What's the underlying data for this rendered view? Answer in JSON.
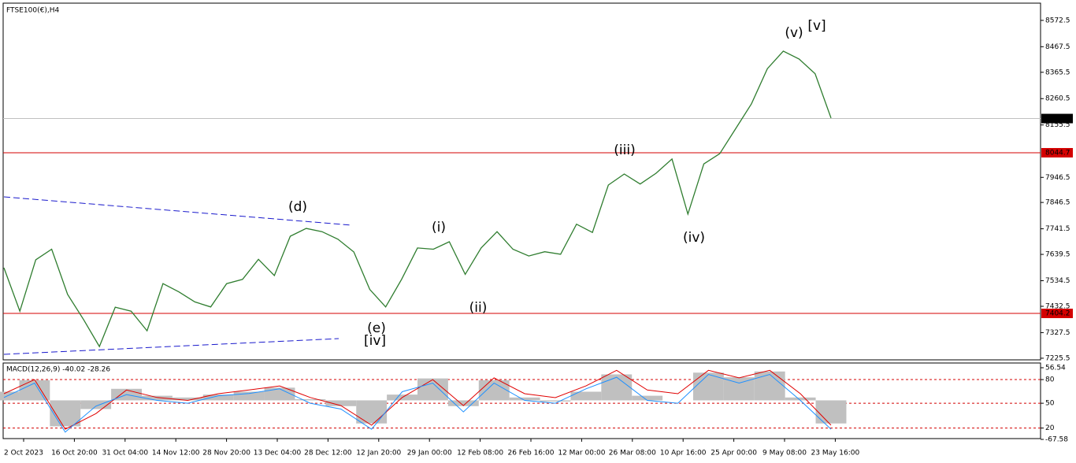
{
  "chart_data": [
    {
      "type": "line",
      "title": "FTSE100(€),H4",
      "color": "#2f7d2f",
      "values": [
        7586,
        7413,
        7618,
        7660,
        7480,
        7380,
        7272,
        7429,
        7413,
        7335,
        7523,
        7490,
        7450,
        7430,
        7523,
        7540,
        7620,
        7555,
        7712,
        7743,
        7730,
        7700,
        7649,
        7500,
        7430,
        7540,
        7665,
        7660,
        7690,
        7560,
        7665,
        7730,
        7660,
        7633,
        7650,
        7640,
        7760,
        7727,
        7916,
        7960,
        7920,
        7963,
        8020,
        7800,
        8000,
        8041,
        8140,
        8240,
        8380,
        8450,
        8418,
        8360,
        8183
      ],
      "ylim": [
        7219,
        8638
      ],
      "yticks": [
        8572.5,
        8467.5,
        8365.5,
        8260.5,
        8155.5,
        7946.5,
        7846.5,
        7741.5,
        7639.5,
        7534.5,
        7432.5,
        7327.5,
        7225.5
      ],
      "levels": [
        8044.7,
        7404.2
      ],
      "levels_color": "#d40000",
      "last_price": 8181.1,
      "x_labels": [
        "2 Oct 2023",
        "16 Oct 20:00",
        "31 Oct 04:00",
        "14 Nov 12:00",
        "28 Nov 20:00",
        "13 Dec 04:00",
        "28 Dec 12:00",
        "12 Jan 20:00",
        "29 Jan 00:00",
        "12 Feb 08:00",
        "26 Feb 16:00",
        "12 Mar 00:00",
        "26 Mar 08:00",
        "10 Apr 16:00",
        "25 Apr 00:00",
        "9 May 08:00",
        "23 May 16:00"
      ],
      "annotations": [
        "(d)",
        "(i)",
        "(ii)",
        "(iii)",
        "(iv)",
        "(v)",
        "[v]",
        "(e)",
        "[iv]"
      ]
    },
    {
      "type": "macd",
      "title": "MACD(12,26,9) -40.02 -28.26",
      "ylim": [
        -67.58,
        56.54
      ],
      "yticks": [
        56.54,
        {
          "value": 36,
          "label": "80"
        },
        {
          "value": -5,
          "label": "50"
        },
        {
          "value": -48,
          "label": "20"
        },
        -67.58
      ],
      "series": [
        {
          "color": "#c0c0c0",
          "values": [
            15,
            35,
            -45,
            -15,
            20,
            8,
            5,
            10,
            15,
            22,
            2,
            -10,
            -40,
            10,
            38,
            -10,
            35,
            5,
            -2,
            15,
            45,
            8,
            0,
            48,
            40,
            50,
            5,
            -40
          ]
        },
        {
          "color": "#e00000",
          "values": [
            11.5,
            36,
            -50,
            -23,
            18,
            5,
            0,
            11.5,
            18,
            25,
            5,
            -9,
            -43,
            5,
            36,
            -9,
            39,
            11.5,
            4.7,
            25,
            52,
            18,
            11.5,
            52,
            39,
            52,
            11.5,
            -43
          ]
        },
        {
          "color": "#1e90ff",
          "values": [
            5,
            30,
            -55,
            -10,
            10,
            0,
            -5,
            8,
            12,
            20,
            -5,
            -15,
            -50,
            15,
            30,
            -20,
            30,
            0,
            -5,
            20,
            40,
            0,
            -5,
            45,
            30,
            45,
            0,
            -50
          ]
        }
      ]
    }
  ]
}
